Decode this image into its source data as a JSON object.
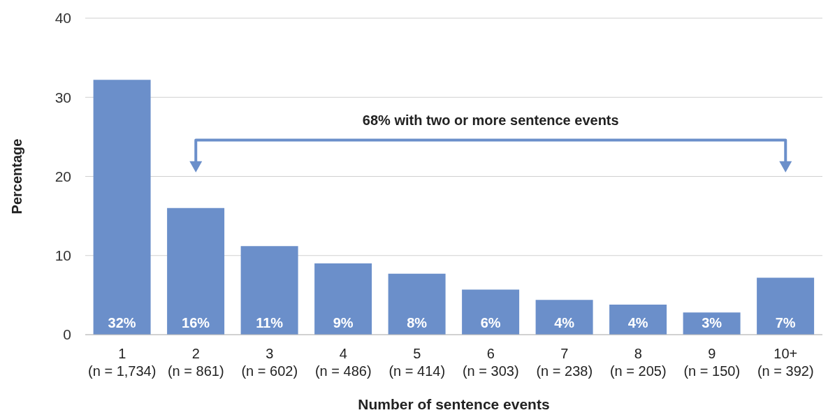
{
  "chart_data": {
    "type": "bar",
    "xlabel": "Number of sentence events",
    "ylabel": "Percentage",
    "categories": [
      "1\n(n = 1,734)",
      "2\n(n = 861)",
      "3\n(n = 602)",
      "4\n(n = 486)",
      "5\n(n = 414)",
      "6\n(n = 303)",
      "7\n(n = 238)",
      "8\n(n = 205)",
      "9\n(n = 150)",
      "10+\n(n = 392)"
    ],
    "values": [
      32.2,
      16,
      11.2,
      9,
      7.7,
      5.7,
      4.4,
      3.8,
      2.8,
      7.2
    ],
    "value_labels": [
      "32%",
      "16%",
      "11%",
      "9%",
      "8%",
      "6%",
      "4%",
      "4%",
      "3%",
      "7%"
    ],
    "color": "#6b8fca",
    "ylim": [
      0,
      40
    ],
    "yticks": [
      0,
      10,
      20,
      30,
      40
    ],
    "grid": "y",
    "annotations": [
      "68% with two or more sentence events"
    ]
  }
}
